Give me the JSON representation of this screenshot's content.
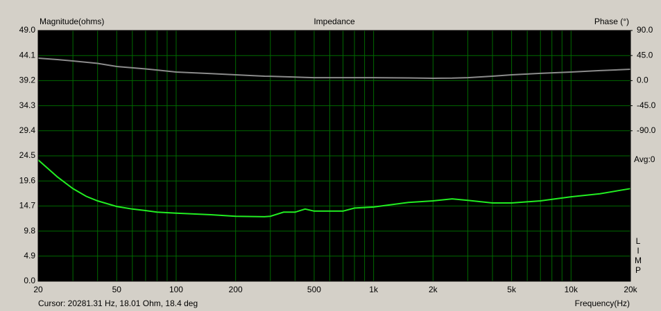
{
  "chart_data": {
    "type": "line",
    "title": "Impedance",
    "ylabel": "Magnitude(ohms)",
    "y2label": "Phase (°)",
    "xlabel": "Frequency(Hz)",
    "cursor": "Cursor: 20281.31 Hz, 18.01 Ohm, 18.4 deg",
    "avg_label": "Avg:0",
    "side_label": [
      "L",
      "I",
      "M",
      "P"
    ],
    "xscale": "log",
    "grid": true,
    "grid_color": "#006a00",
    "background": "#000000",
    "xlim": [
      20,
      20000
    ],
    "xticks": [
      20,
      50,
      100,
      200,
      500,
      {
        "value": 1000,
        "label": "1k"
      },
      {
        "value": 2000,
        "label": "2k"
      },
      {
        "value": 5000,
        "label": "5k"
      },
      {
        "value": 10000,
        "label": "10k"
      },
      {
        "value": 20000,
        "label": "20k"
      }
    ],
    "xminor": [
      30,
      40,
      60,
      70,
      80,
      90,
      300,
      400,
      600,
      700,
      800,
      900,
      3000,
      4000,
      6000,
      7000,
      8000,
      9000
    ],
    "ylim": [
      0,
      49
    ],
    "yticks": [
      {
        "value": 0,
        "label": "0.0"
      },
      4.9,
      9.8,
      14.7,
      19.6,
      24.5,
      29.4,
      34.3,
      39.2,
      44.1,
      {
        "value": 49,
        "label": "49.0"
      }
    ],
    "y2lim": [
      -360,
      90
    ],
    "y2ticks": [
      {
        "value": 90,
        "label": "90.0"
      },
      {
        "value": 45,
        "label": "45.0"
      },
      {
        "value": 0,
        "label": "0.0"
      },
      {
        "value": -45,
        "label": "-45.0"
      },
      {
        "value": -90,
        "label": "-90.0"
      }
    ],
    "x": [
      20,
      25,
      30,
      35,
      40,
      50,
      60,
      70,
      80,
      100,
      150,
      200,
      280,
      300,
      350,
      400,
      450,
      500,
      700,
      800,
      1000,
      1500,
      2000,
      2500,
      3000,
      4000,
      5000,
      7000,
      10000,
      14000,
      20000
    ],
    "series": [
      {
        "color": "#22ee22",
        "values": [
          23.7,
          20.4,
          18.1,
          16.6,
          15.7,
          14.6,
          14.1,
          13.8,
          13.5,
          13.3,
          13.0,
          12.7,
          12.6,
          12.7,
          13.5,
          13.5,
          14.1,
          13.7,
          13.7,
          14.3,
          14.5,
          15.4,
          15.7,
          16.1,
          15.8,
          15.3,
          15.3,
          15.7,
          16.5,
          17.1,
          18.1
        ]
      },
      {
        "color": "#8c8c8c",
        "axis": "y2",
        "values": [
          40.3,
          37.8,
          35.3,
          33,
          31,
          25.4,
          23,
          21,
          19,
          15.4,
          12.5,
          10.4,
          8,
          7.8,
          7,
          6.5,
          5.8,
          5.4,
          5.4,
          5.4,
          5.4,
          4.8,
          4.2,
          4.5,
          5.4,
          8,
          10.4,
          13,
          15.4,
          18,
          20.4
        ]
      }
    ]
  }
}
